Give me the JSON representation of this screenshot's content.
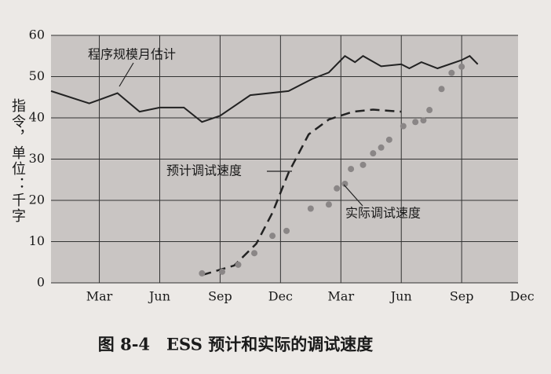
{
  "chart_data": {
    "type": "line",
    "title": "图 8-4　ESS 预计和实际的调试速度",
    "ylabel": "指令，单位：千字",
    "xlim": [
      0.6,
      23.8
    ],
    "ylim": [
      0,
      60
    ],
    "yticks": [
      0,
      10,
      20,
      30,
      40,
      50,
      60
    ],
    "xticks": [
      {
        "value": 3,
        "label": "Mar"
      },
      {
        "value": 6,
        "label": "Jun"
      },
      {
        "value": 9,
        "label": "Sep"
      },
      {
        "value": 12,
        "label": "Dec"
      },
      {
        "value": 15,
        "label": "Mar"
      },
      {
        "value": 18,
        "label": "Jun"
      },
      {
        "value": 21,
        "label": "Sep"
      },
      {
        "value": 24,
        "label": "Dec"
      }
    ],
    "grid": true,
    "series": [
      {
        "name": "程序规模月估计",
        "style": "solid",
        "color": "#222222",
        "x": [
          0.6,
          2.5,
          3.9,
          5,
          6,
          7.2,
          8.1,
          9,
          10.5,
          12.4,
          13.6,
          14.4,
          15.2,
          15.7,
          16.1,
          17,
          18,
          18.4,
          19,
          19.8,
          21,
          21.4,
          21.8
        ],
        "values": [
          46.5,
          43.5,
          46,
          41.5,
          42.5,
          42.5,
          39,
          40.5,
          45.5,
          46.5,
          49.5,
          51,
          55,
          53.5,
          55,
          52.5,
          53,
          52,
          53.5,
          52,
          54,
          55,
          53
        ]
      },
      {
        "name": "预计调试速度",
        "style": "dashed",
        "color": "#222222",
        "x": [
          8.1,
          9.7,
          10.8,
          11.6,
          12.4,
          13.4,
          14.4,
          15.6,
          16.6,
          18
        ],
        "values": [
          1.9,
          4.2,
          9.5,
          17,
          26.7,
          36,
          39.6,
          41.5,
          42,
          41.5
        ]
      },
      {
        "name": "实际调试速度",
        "style": "dots",
        "color": "#8a8686",
        "x": [
          8.1,
          9.1,
          9.9,
          10.7,
          11.6,
          12.3,
          13.5,
          14.4,
          14.8,
          15.2,
          15.5,
          16.1,
          16.6,
          17,
          17.4,
          18.1,
          18.7,
          19.1,
          19.4,
          20,
          20.5,
          21
        ],
        "values": [
          2.3,
          2.7,
          4.4,
          7.2,
          11.4,
          12.6,
          18,
          19,
          22.9,
          24,
          27.6,
          28.6,
          31.4,
          32.8,
          34.7,
          38,
          39,
          39.4,
          41.9,
          47,
          50.9,
          52.4
        ]
      }
    ]
  }
}
